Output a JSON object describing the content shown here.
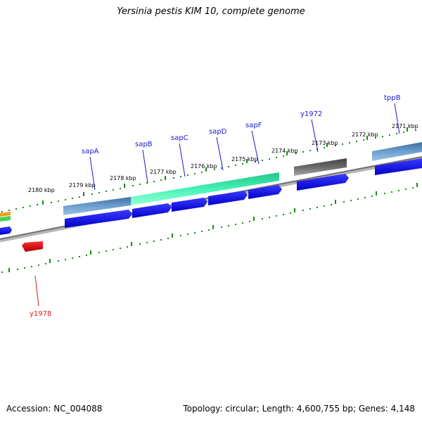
{
  "title": "Yersinia pestis KIM 10, complete genome",
  "footer": {
    "accession": "Accession: NC_004088",
    "summary": "Topology: circular; Length: 4,600,755 bp; Genes: 4,148"
  },
  "ticks": [
    "2171 kbp",
    "2172 kbp",
    "2173 kbp",
    "2174 kbp",
    "2175 kbp",
    "2176 kbp",
    "2177 kbp",
    "2178 kbp",
    "2179 kbp",
    "2180 kbp"
  ],
  "genes": [
    {
      "name": "tppB",
      "color": "#1a1acc"
    },
    {
      "name": "y1972",
      "color": "#1a1acc"
    },
    {
      "name": "sapF",
      "color": "#1a1acc"
    },
    {
      "name": "sapD",
      "color": "#1a1acc"
    },
    {
      "name": "sapC",
      "color": "#1a1acc"
    },
    {
      "name": "sapB",
      "color": "#1a1acc"
    },
    {
      "name": "sapA",
      "color": "#1a1acc"
    },
    {
      "name": "y1978",
      "color": "#e01515"
    }
  ],
  "colors": {
    "cds": "#0000ee",
    "sap_operon": "#2ee8a8",
    "steelblue_feature": "#4a7fae",
    "gray_feature": "#555555",
    "red_feature": "#dd1111",
    "tick": "#1a8a1a",
    "backbone": "#888888"
  }
}
